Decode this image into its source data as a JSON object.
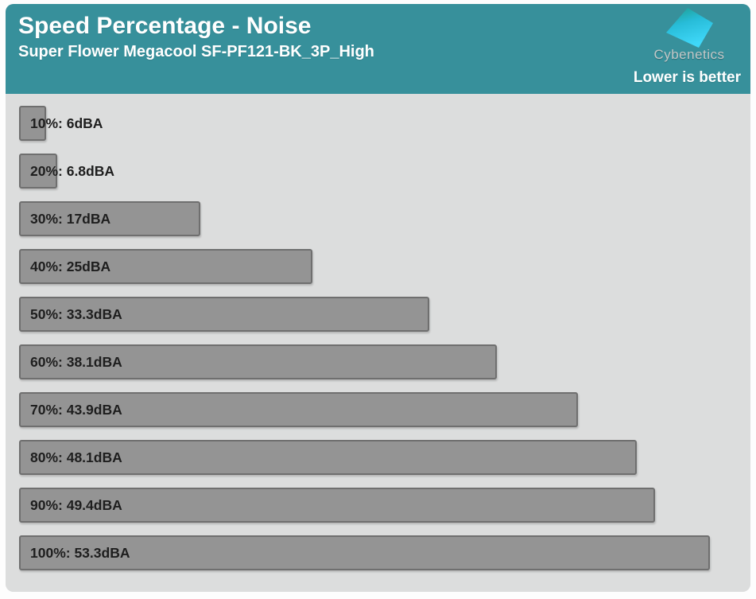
{
  "branding": {
    "logo_text": "Cybenetics",
    "logo_icon": "cybenetics-diamond-icon"
  },
  "header": {
    "title": "Speed Percentage - Noise",
    "subtitle": "Super Flower Megacool SF-PF121-BK_3P_High",
    "note": "Lower is better"
  },
  "colors": {
    "header_bg": "#37909b",
    "plot_bg": "#dcdddd",
    "bar_fill": "#949494",
    "bar_border": "#6f6f6f",
    "bar_label_text": "#1e1e1e",
    "header_text": "#ffffff",
    "logo_text": "#c2c8c8",
    "logo_gradient_top": "#1d9c8b",
    "logo_gradient_bottom": "#3fd7f8"
  },
  "chart_data": {
    "type": "bar",
    "orientation": "horizontal",
    "title": "Speed Percentage - Noise",
    "subtitle": "Super Flower Megacool SF-PF121-BK_3P_High",
    "note": "Lower is better",
    "unit": "dBA",
    "categories": [
      "10%",
      "20%",
      "30%",
      "40%",
      "50%",
      "60%",
      "70%",
      "80%",
      "90%",
      "100%"
    ],
    "values": [
      6,
      6.8,
      17,
      25,
      33.3,
      38.1,
      43.9,
      48.1,
      49.4,
      53.3
    ],
    "labels": [
      "10%: 6dBA",
      "20%: 6.8dBA",
      "30%: 17dBA",
      "40%: 25dBA",
      "50%: 33.3dBA",
      "60%: 38.1dBA",
      "70%: 43.9dBA",
      "80%: 48.1dBA",
      "90%: 49.4dBA",
      "100%: 53.3dBA"
    ],
    "xlim": [
      4.07,
      55.8
    ],
    "grid": false,
    "legend": false,
    "value_labels_inside_bars": true
  }
}
